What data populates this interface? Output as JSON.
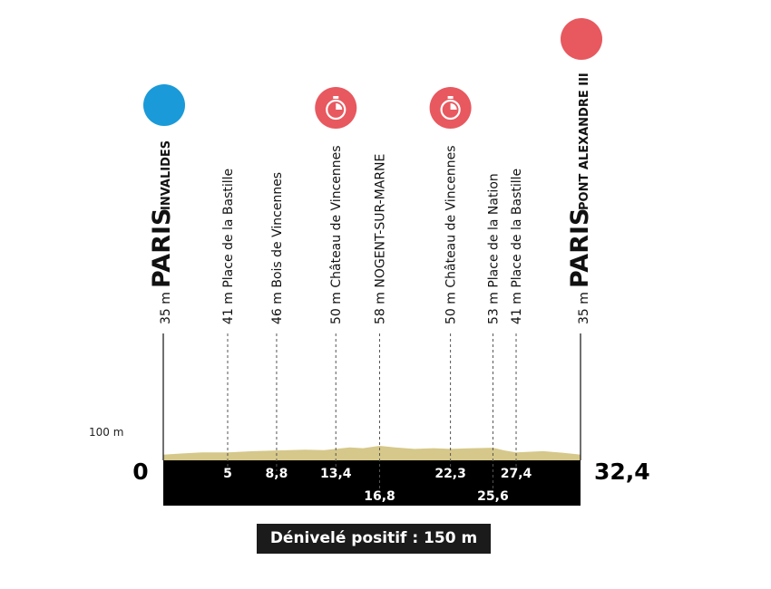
{
  "route": {
    "distance_start": "0",
    "distance_end": "32,4",
    "scale_label": "100 m",
    "start": {
      "altitude": "35 m",
      "city": "PARIS",
      "place": "INVALIDES",
      "color": "#1a9ad8"
    },
    "finish": {
      "altitude": "35 m",
      "city": "PARIS",
      "place": "PONT ALEXANDRE III",
      "color": "#e8585f"
    },
    "checkpoints": [
      {
        "label": "41 m Place de la Bastille",
        "km": 5,
        "km_label": "5",
        "timed": false
      },
      {
        "label": "46 m Bois de Vincennes",
        "km": 8.8,
        "km_label": "8,8",
        "timed": false
      },
      {
        "label": "50 m Château de Vincennes",
        "km": 13.4,
        "km_label": "13,4",
        "timed": true
      },
      {
        "label": "58 m NOGENT-SUR-MARNE",
        "km": 16.8,
        "km_label": "16,8",
        "timed": false
      },
      {
        "label": "50 m Château de Vincennes",
        "km": 22.3,
        "km_label": "22,3",
        "timed": true
      },
      {
        "label": "53 m Place de la Nation",
        "km": 25.6,
        "km_label": "25,6",
        "timed": false
      },
      {
        "label": "41 m Place de la Bastille",
        "km": 27.4,
        "km_label": "27,4",
        "timed": false
      }
    ],
    "elevation_profile": [
      {
        "km": 0,
        "alt": 35
      },
      {
        "km": 1.5,
        "alt": 38
      },
      {
        "km": 3,
        "alt": 41
      },
      {
        "km": 5,
        "alt": 41
      },
      {
        "km": 7,
        "alt": 44
      },
      {
        "km": 8.8,
        "alt": 46
      },
      {
        "km": 11,
        "alt": 48
      },
      {
        "km": 12.5,
        "alt": 47
      },
      {
        "km": 13.4,
        "alt": 50
      },
      {
        "km": 14.5,
        "alt": 54
      },
      {
        "km": 15.5,
        "alt": 52
      },
      {
        "km": 16.8,
        "alt": 58
      },
      {
        "km": 18,
        "alt": 54
      },
      {
        "km": 19.5,
        "alt": 50
      },
      {
        "km": 21,
        "alt": 52
      },
      {
        "km": 22.3,
        "alt": 50
      },
      {
        "km": 24,
        "alt": 52
      },
      {
        "km": 25.6,
        "alt": 53
      },
      {
        "km": 26.5,
        "alt": 46
      },
      {
        "km": 27.4,
        "alt": 41
      },
      {
        "km": 29.5,
        "alt": 44
      },
      {
        "km": 31,
        "alt": 40
      },
      {
        "km": 32.4,
        "alt": 35
      }
    ],
    "colors": {
      "terrain": "#d6c88a",
      "band": "#000000",
      "timer": "#e8585f"
    },
    "elevation_gain": "Dénivelé positif : 150 m"
  }
}
